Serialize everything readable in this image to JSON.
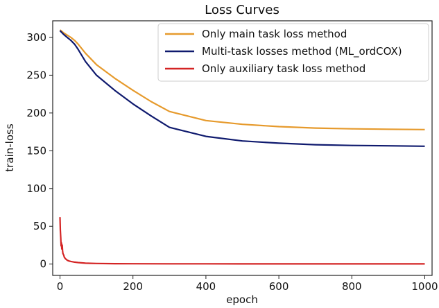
{
  "chart_data": {
    "type": "line",
    "title": "Loss Curves",
    "xlabel": "epoch",
    "ylabel": "train-loss",
    "xlim": [
      -20,
      1020
    ],
    "ylim": [
      -15,
      322
    ],
    "xticks": [
      0,
      200,
      400,
      600,
      800,
      1000
    ],
    "yticks": [
      0,
      50,
      100,
      150,
      200,
      250,
      300
    ],
    "grid": false,
    "legend_position": "top-right",
    "series": [
      {
        "name": "Only main task loss method",
        "color": "#e69a2c",
        "x": [
          0,
          10,
          20,
          30,
          40,
          50,
          70,
          100,
          150,
          200,
          250,
          300,
          400,
          500,
          600,
          700,
          800,
          900,
          1000
        ],
        "y": [
          310,
          306,
          303,
          300,
          296,
          291,
          279,
          264,
          246,
          230,
          215,
          202,
          190,
          185,
          182,
          180,
          179,
          178.5,
          178
        ]
      },
      {
        "name": "Multi-task losses method (ML_ordCOX)",
        "color": "#0f1a6e",
        "x": [
          0,
          10,
          20,
          30,
          40,
          50,
          70,
          100,
          150,
          200,
          250,
          300,
          400,
          500,
          600,
          700,
          800,
          900,
          1000
        ],
        "y": [
          309,
          304,
          300,
          296,
          291,
          284,
          268,
          250,
          230,
          212,
          196,
          181,
          169,
          163,
          160,
          158,
          157,
          156.5,
          156
        ]
      },
      {
        "name": "Only auxiliary task loss method",
        "color": "#d42424",
        "x": [
          0,
          1,
          2,
          3,
          4,
          5,
          6,
          7,
          8,
          10,
          12,
          15,
          20,
          25,
          30,
          40,
          50,
          70,
          100,
          150,
          200,
          300,
          400,
          500,
          600,
          700,
          800,
          900,
          1000
        ],
        "y": [
          62,
          45,
          35,
          24,
          28,
          20,
          25,
          18,
          14,
          12,
          9,
          7,
          5,
          4,
          3.5,
          2.5,
          2,
          1.2,
          0.8,
          0.5,
          0.4,
          0.3,
          0.3,
          0.2,
          0.2,
          0.2,
          0.2,
          0.2,
          0.2
        ]
      }
    ]
  }
}
